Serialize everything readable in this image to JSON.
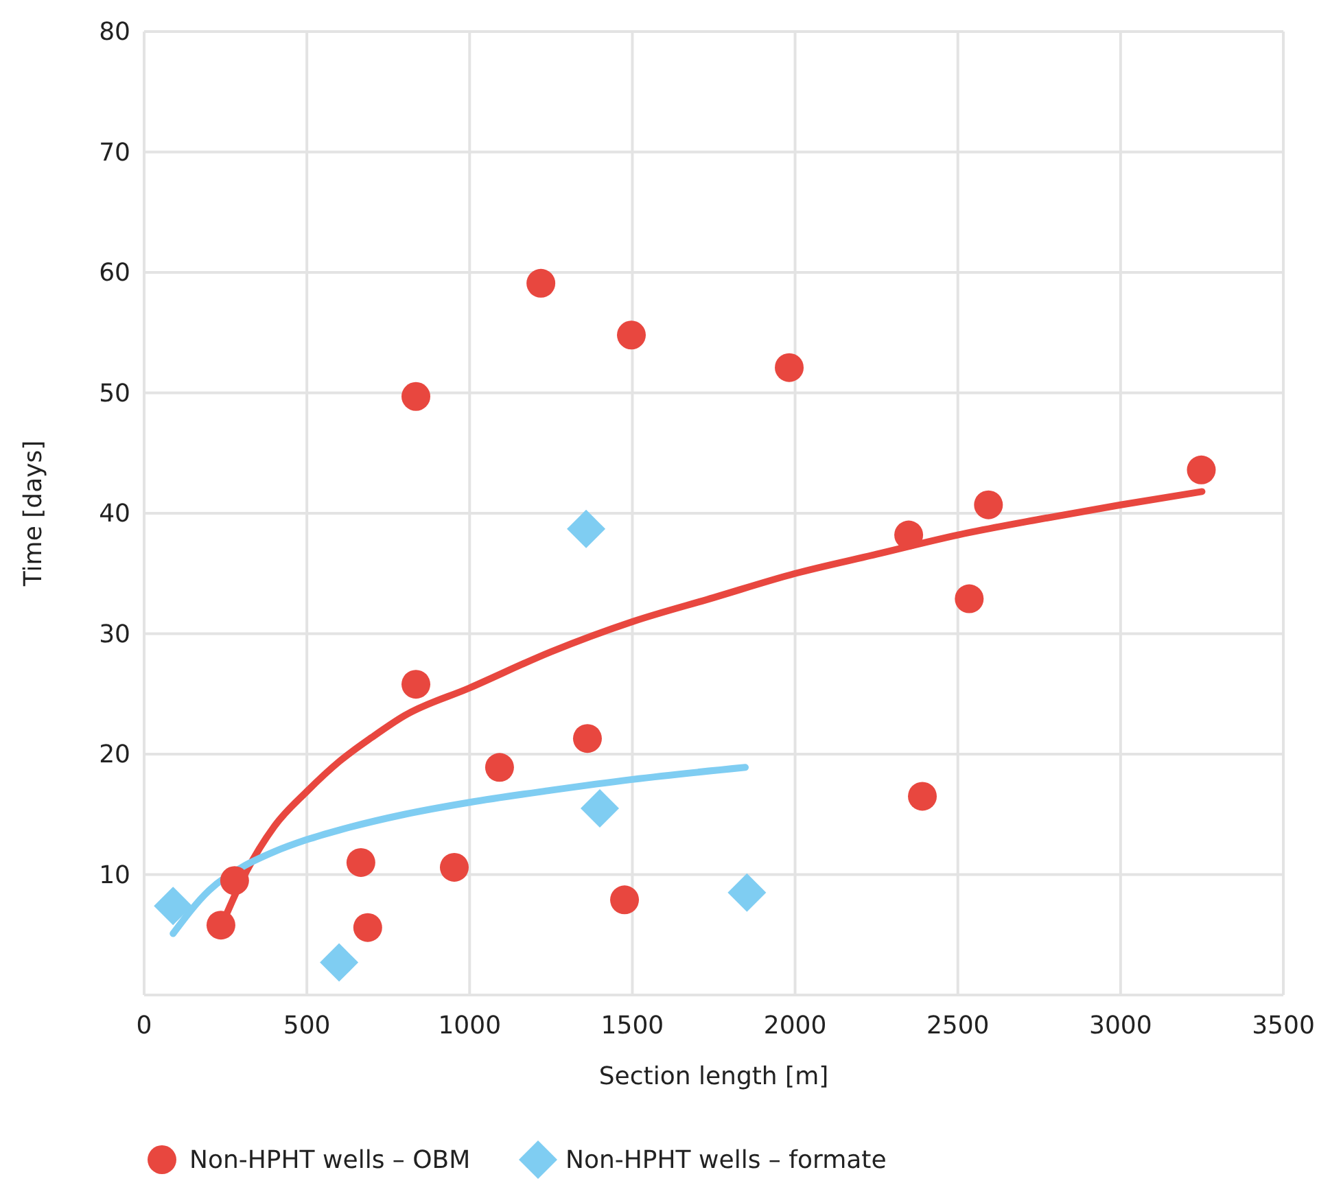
{
  "chart_data": {
    "type": "scatter",
    "xlabel": "Section length [m]",
    "ylabel": "Time [days]",
    "xlim": [
      0,
      3500
    ],
    "ylim": [
      0,
      80
    ],
    "xticks": [
      0,
      500,
      1000,
      1500,
      2000,
      2500,
      3000,
      3500
    ],
    "yticks": [
      10,
      20,
      30,
      40,
      50,
      60,
      70,
      80
    ],
    "grid": true,
    "legend": "bottom",
    "series": [
      {
        "name": "Non-HPHT wells – OBM",
        "marker": "circle",
        "color": "#e8473f",
        "x": [
          236,
          278,
          835,
          835,
          666,
          687,
          953,
          1092,
          1219,
          1362,
          1476,
          1497,
          1982,
          2349,
          2391,
          2535,
          2594,
          3248
        ],
        "values": [
          5.8,
          9.5,
          49.7,
          25.8,
          11.0,
          5.6,
          10.6,
          18.9,
          59.1,
          21.3,
          7.9,
          54.8,
          52.1,
          38.2,
          16.5,
          32.9,
          40.7,
          43.6
        ]
      },
      {
        "name": "Non-HPHT wells – formate",
        "marker": "diamond",
        "color": "#7fcdf2",
        "x": [
          89,
          599,
          1358,
          1400,
          1852
        ],
        "values": [
          7.4,
          2.7,
          38.7,
          15.5,
          8.5
        ]
      },
      {
        "type": "line",
        "marker": "none",
        "color": "#e8473f",
        "x": [
          245,
          300,
          400,
          500,
          600,
          700,
          800,
          1000,
          1250,
          1500,
          1750,
          2000,
          2250,
          2500,
          2750,
          3000,
          3250
        ],
        "values": [
          6.2,
          9.5,
          14,
          16.9,
          19.4,
          21.4,
          23.2,
          25.5,
          28.5,
          31,
          33,
          35,
          36.6,
          38.2,
          39.5,
          40.7,
          41.8
        ]
      },
      {
        "type": "line",
        "marker": "none",
        "color": "#7fcdf2",
        "x": [
          89,
          200,
          300,
          400,
          500,
          600,
          800,
          1000,
          1250,
          1500,
          1847
        ],
        "values": [
          5.1,
          8.7,
          10.6,
          11.9,
          12.9,
          13.7,
          15.0,
          16.0,
          17.0,
          17.9,
          18.9
        ]
      }
    ]
  }
}
